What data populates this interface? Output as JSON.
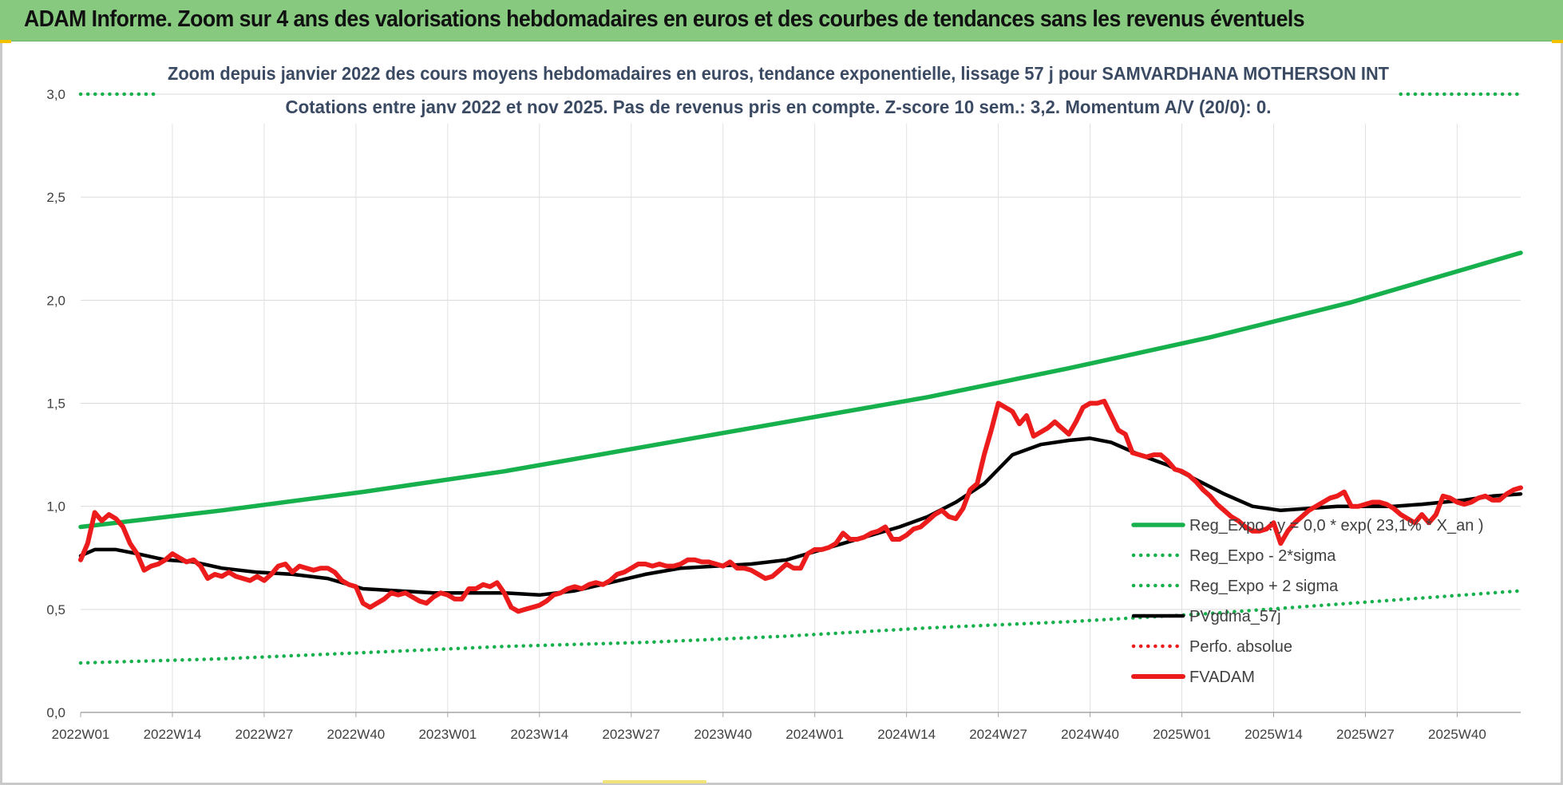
{
  "banner": {
    "title": "ADAM Informe. Zoom sur 4 ans des valorisations hebdomadaires en euros et des courbes de tendances sans les revenus éventuels"
  },
  "colors": {
    "trend_green": "#16b04c",
    "adam_red": "#ec1c1c",
    "pvgdma_black": "#000000",
    "banner_bg": "#86c97f"
  },
  "chart_data": {
    "type": "line",
    "title_line1": "Zoom depuis janvier 2022 des cours moyens hebdomadaires en euros, tendance exponentielle, lissage 57 j pour SAMVARDHANA MOTHERSON INT",
    "title_line2": "Cotations entre janv 2022 et nov 2025. Pas de revenus pris en compte. Z-score 10 sem.: 3,2. Momentum A/V (20/0): 0.",
    "xlabel": "",
    "ylabel": "",
    "ylim": [
      0,
      3.0
    ],
    "yticks": [
      "0,0",
      "0,5",
      "1,0",
      "1,5",
      "2,0",
      "2,5",
      "3,0"
    ],
    "x_range_weeks": [
      0,
      204
    ],
    "xticks": [
      {
        "label": "2022W01",
        "week": 0
      },
      {
        "label": "2022W14",
        "week": 13
      },
      {
        "label": "2022W27",
        "week": 26
      },
      {
        "label": "2022W40",
        "week": 39
      },
      {
        "label": "2023W01",
        "week": 52
      },
      {
        "label": "2023W14",
        "week": 65
      },
      {
        "label": "2023W27",
        "week": 78
      },
      {
        "label": "2023W40",
        "week": 91
      },
      {
        "label": "2024W01",
        "week": 104
      },
      {
        "label": "2024W14",
        "week": 117
      },
      {
        "label": "2024W27",
        "week": 130
      },
      {
        "label": "2024W40",
        "week": 143
      },
      {
        "label": "2025W01",
        "week": 156
      },
      {
        "label": "2025W14",
        "week": 169
      },
      {
        "label": "2025W27",
        "week": 182
      },
      {
        "label": "2025W40",
        "week": 195
      }
    ],
    "grid": "vertical and horizontal",
    "legend_position": "bottom-right",
    "series": [
      {
        "name": "Reg_Expo : y = 0,0 * exp( 23,1% * X_an )",
        "style": "solid-thick",
        "color": "#16b04c",
        "points": [
          [
            0,
            0.9
          ],
          [
            20,
            0.98
          ],
          [
            40,
            1.07
          ],
          [
            60,
            1.17
          ],
          [
            80,
            1.29
          ],
          [
            100,
            1.41
          ],
          [
            120,
            1.53
          ],
          [
            140,
            1.67
          ],
          [
            160,
            1.82
          ],
          [
            180,
            1.99
          ],
          [
            204,
            2.23
          ]
        ]
      },
      {
        "name": "Reg_Expo - 2*sigma",
        "style": "dotted",
        "color": "#16b04c",
        "points": [
          [
            0,
            0.24
          ],
          [
            20,
            0.26
          ],
          [
            40,
            0.29
          ],
          [
            60,
            0.32
          ],
          [
            80,
            0.34
          ],
          [
            100,
            0.37
          ],
          [
            120,
            0.41
          ],
          [
            140,
            0.44
          ],
          [
            160,
            0.48
          ],
          [
            180,
            0.53
          ],
          [
            204,
            0.59
          ]
        ]
      },
      {
        "name": "Reg_Expo + 2 sigma",
        "style": "dotted",
        "color": "#16b04c",
        "points": [
          [
            0,
            3.0
          ],
          [
            11,
            3.0
          ]
        ],
        "points_b": [
          [
            187,
            3.0
          ],
          [
            204,
            3.0
          ]
        ]
      },
      {
        "name": "PVgdma_57j",
        "style": "solid",
        "color": "#000000",
        "points": [
          [
            0,
            0.76
          ],
          [
            2,
            0.79
          ],
          [
            5,
            0.79
          ],
          [
            8,
            0.77
          ],
          [
            12,
            0.74
          ],
          [
            16,
            0.73
          ],
          [
            20,
            0.7
          ],
          [
            25,
            0.68
          ],
          [
            30,
            0.67
          ],
          [
            35,
            0.65
          ],
          [
            40,
            0.6
          ],
          [
            45,
            0.59
          ],
          [
            50,
            0.58
          ],
          [
            55,
            0.58
          ],
          [
            60,
            0.58
          ],
          [
            65,
            0.57
          ],
          [
            70,
            0.59
          ],
          [
            75,
            0.63
          ],
          [
            80,
            0.67
          ],
          [
            85,
            0.7
          ],
          [
            90,
            0.71
          ],
          [
            95,
            0.72
          ],
          [
            100,
            0.74
          ],
          [
            104,
            0.78
          ],
          [
            108,
            0.82
          ],
          [
            112,
            0.86
          ],
          [
            116,
            0.9
          ],
          [
            120,
            0.95
          ],
          [
            124,
            1.02
          ],
          [
            128,
            1.11
          ],
          [
            132,
            1.25
          ],
          [
            136,
            1.3
          ],
          [
            140,
            1.32
          ],
          [
            143,
            1.33
          ],
          [
            146,
            1.31
          ],
          [
            150,
            1.25
          ],
          [
            154,
            1.2
          ],
          [
            158,
            1.13
          ],
          [
            162,
            1.06
          ],
          [
            166,
            1.0
          ],
          [
            170,
            0.98
          ],
          [
            174,
            0.99
          ],
          [
            178,
            1.0
          ],
          [
            182,
            1.0
          ],
          [
            186,
            1.0
          ],
          [
            190,
            1.01
          ],
          [
            196,
            1.03
          ],
          [
            200,
            1.05
          ],
          [
            204,
            1.06
          ]
        ]
      },
      {
        "name": "Perfo. absolue",
        "style": "dotted",
        "color": "#ec1c1c",
        "points": []
      },
      {
        "name": "FVADAM",
        "style": "solid-thick",
        "color": "#ec1c1c",
        "points": [
          [
            0,
            0.74
          ],
          [
            1,
            0.82
          ],
          [
            2,
            0.97
          ],
          [
            3,
            0.93
          ],
          [
            4,
            0.96
          ],
          [
            5,
            0.94
          ],
          [
            6,
            0.9
          ],
          [
            7,
            0.82
          ],
          [
            8,
            0.77
          ],
          [
            9,
            0.69
          ],
          [
            10,
            0.71
          ],
          [
            11,
            0.72
          ],
          [
            12,
            0.74
          ],
          [
            13,
            0.77
          ],
          [
            14,
            0.75
          ],
          [
            15,
            0.73
          ],
          [
            16,
            0.74
          ],
          [
            17,
            0.71
          ],
          [
            18,
            0.65
          ],
          [
            19,
            0.67
          ],
          [
            20,
            0.66
          ],
          [
            21,
            0.68
          ],
          [
            22,
            0.66
          ],
          [
            23,
            0.65
          ],
          [
            24,
            0.64
          ],
          [
            25,
            0.66
          ],
          [
            26,
            0.64
          ],
          [
            27,
            0.67
          ],
          [
            28,
            0.71
          ],
          [
            29,
            0.72
          ],
          [
            30,
            0.68
          ],
          [
            31,
            0.71
          ],
          [
            32,
            0.7
          ],
          [
            33,
            0.69
          ],
          [
            34,
            0.7
          ],
          [
            35,
            0.7
          ],
          [
            36,
            0.68
          ],
          [
            37,
            0.64
          ],
          [
            38,
            0.62
          ],
          [
            39,
            0.61
          ],
          [
            40,
            0.53
          ],
          [
            41,
            0.51
          ],
          [
            42,
            0.53
          ],
          [
            43,
            0.55
          ],
          [
            44,
            0.58
          ],
          [
            45,
            0.57
          ],
          [
            46,
            0.58
          ],
          [
            47,
            0.56
          ],
          [
            48,
            0.54
          ],
          [
            49,
            0.53
          ],
          [
            50,
            0.56
          ],
          [
            51,
            0.58
          ],
          [
            52,
            0.57
          ],
          [
            53,
            0.55
          ],
          [
            54,
            0.55
          ],
          [
            55,
            0.6
          ],
          [
            56,
            0.6
          ],
          [
            57,
            0.62
          ],
          [
            58,
            0.61
          ],
          [
            59,
            0.63
          ],
          [
            60,
            0.58
          ],
          [
            61,
            0.51
          ],
          [
            62,
            0.49
          ],
          [
            63,
            0.5
          ],
          [
            64,
            0.51
          ],
          [
            65,
            0.52
          ],
          [
            66,
            0.54
          ],
          [
            67,
            0.57
          ],
          [
            68,
            0.58
          ],
          [
            69,
            0.6
          ],
          [
            70,
            0.61
          ],
          [
            71,
            0.6
          ],
          [
            72,
            0.62
          ],
          [
            73,
            0.63
          ],
          [
            74,
            0.62
          ],
          [
            75,
            0.64
          ],
          [
            76,
            0.67
          ],
          [
            77,
            0.68
          ],
          [
            78,
            0.7
          ],
          [
            79,
            0.72
          ],
          [
            80,
            0.72
          ],
          [
            81,
            0.71
          ],
          [
            82,
            0.72
          ],
          [
            83,
            0.71
          ],
          [
            84,
            0.71
          ],
          [
            85,
            0.72
          ],
          [
            86,
            0.74
          ],
          [
            87,
            0.74
          ],
          [
            88,
            0.73
          ],
          [
            89,
            0.73
          ],
          [
            90,
            0.72
          ],
          [
            91,
            0.71
          ],
          [
            92,
            0.73
          ],
          [
            93,
            0.7
          ],
          [
            94,
            0.7
          ],
          [
            95,
            0.69
          ],
          [
            96,
            0.67
          ],
          [
            97,
            0.65
          ],
          [
            98,
            0.66
          ],
          [
            99,
            0.69
          ],
          [
            100,
            0.72
          ],
          [
            101,
            0.7
          ],
          [
            102,
            0.7
          ],
          [
            103,
            0.77
          ],
          [
            104,
            0.79
          ],
          [
            105,
            0.79
          ],
          [
            106,
            0.8
          ],
          [
            107,
            0.82
          ],
          [
            108,
            0.87
          ],
          [
            109,
            0.84
          ],
          [
            110,
            0.84
          ],
          [
            111,
            0.85
          ],
          [
            112,
            0.87
          ],
          [
            113,
            0.88
          ],
          [
            114,
            0.9
          ],
          [
            115,
            0.84
          ],
          [
            116,
            0.84
          ],
          [
            117,
            0.86
          ],
          [
            118,
            0.89
          ],
          [
            119,
            0.9
          ],
          [
            120,
            0.93
          ],
          [
            121,
            0.96
          ],
          [
            122,
            0.98
          ],
          [
            123,
            0.95
          ],
          [
            124,
            0.94
          ],
          [
            125,
            0.99
          ],
          [
            126,
            1.08
          ],
          [
            127,
            1.11
          ],
          [
            128,
            1.25
          ],
          [
            129,
            1.37
          ],
          [
            130,
            1.5
          ],
          [
            131,
            1.48
          ],
          [
            132,
            1.46
          ],
          [
            133,
            1.4
          ],
          [
            134,
            1.44
          ],
          [
            135,
            1.34
          ],
          [
            136,
            1.36
          ],
          [
            137,
            1.38
          ],
          [
            138,
            1.41
          ],
          [
            139,
            1.38
          ],
          [
            140,
            1.35
          ],
          [
            141,
            1.41
          ],
          [
            142,
            1.48
          ],
          [
            143,
            1.5
          ],
          [
            144,
            1.5
          ],
          [
            145,
            1.51
          ],
          [
            146,
            1.44
          ],
          [
            147,
            1.37
          ],
          [
            148,
            1.35
          ],
          [
            149,
            1.26
          ],
          [
            150,
            1.25
          ],
          [
            151,
            1.24
          ],
          [
            152,
            1.25
          ],
          [
            153,
            1.25
          ],
          [
            154,
            1.22
          ],
          [
            155,
            1.18
          ],
          [
            156,
            1.17
          ],
          [
            157,
            1.15
          ],
          [
            158,
            1.12
          ],
          [
            159,
            1.08
          ],
          [
            160,
            1.05
          ],
          [
            161,
            1.01
          ],
          [
            162,
            0.98
          ],
          [
            163,
            0.95
          ],
          [
            164,
            0.93
          ],
          [
            165,
            0.9
          ],
          [
            166,
            0.88
          ],
          [
            167,
            0.88
          ],
          [
            168,
            0.89
          ],
          [
            169,
            0.92
          ],
          [
            170,
            0.82
          ],
          [
            171,
            0.88
          ],
          [
            172,
            0.92
          ],
          [
            173,
            0.95
          ],
          [
            174,
            0.98
          ],
          [
            175,
            1.0
          ],
          [
            176,
            1.02
          ],
          [
            177,
            1.04
          ],
          [
            178,
            1.05
          ],
          [
            179,
            1.07
          ],
          [
            180,
            1.0
          ],
          [
            181,
            1.0
          ],
          [
            182,
            1.01
          ],
          [
            183,
            1.02
          ],
          [
            184,
            1.02
          ],
          [
            185,
            1.01
          ],
          [
            186,
            0.99
          ],
          [
            187,
            0.96
          ],
          [
            188,
            0.94
          ],
          [
            189,
            0.92
          ],
          [
            190,
            0.96
          ],
          [
            191,
            0.92
          ],
          [
            192,
            0.96
          ],
          [
            193,
            1.05
          ],
          [
            194,
            1.04
          ],
          [
            195,
            1.02
          ],
          [
            196,
            1.01
          ],
          [
            197,
            1.02
          ],
          [
            198,
            1.04
          ],
          [
            199,
            1.05
          ],
          [
            200,
            1.03
          ],
          [
            201,
            1.03
          ],
          [
            202,
            1.06
          ],
          [
            203,
            1.08
          ],
          [
            204,
            1.09
          ]
        ]
      }
    ]
  }
}
